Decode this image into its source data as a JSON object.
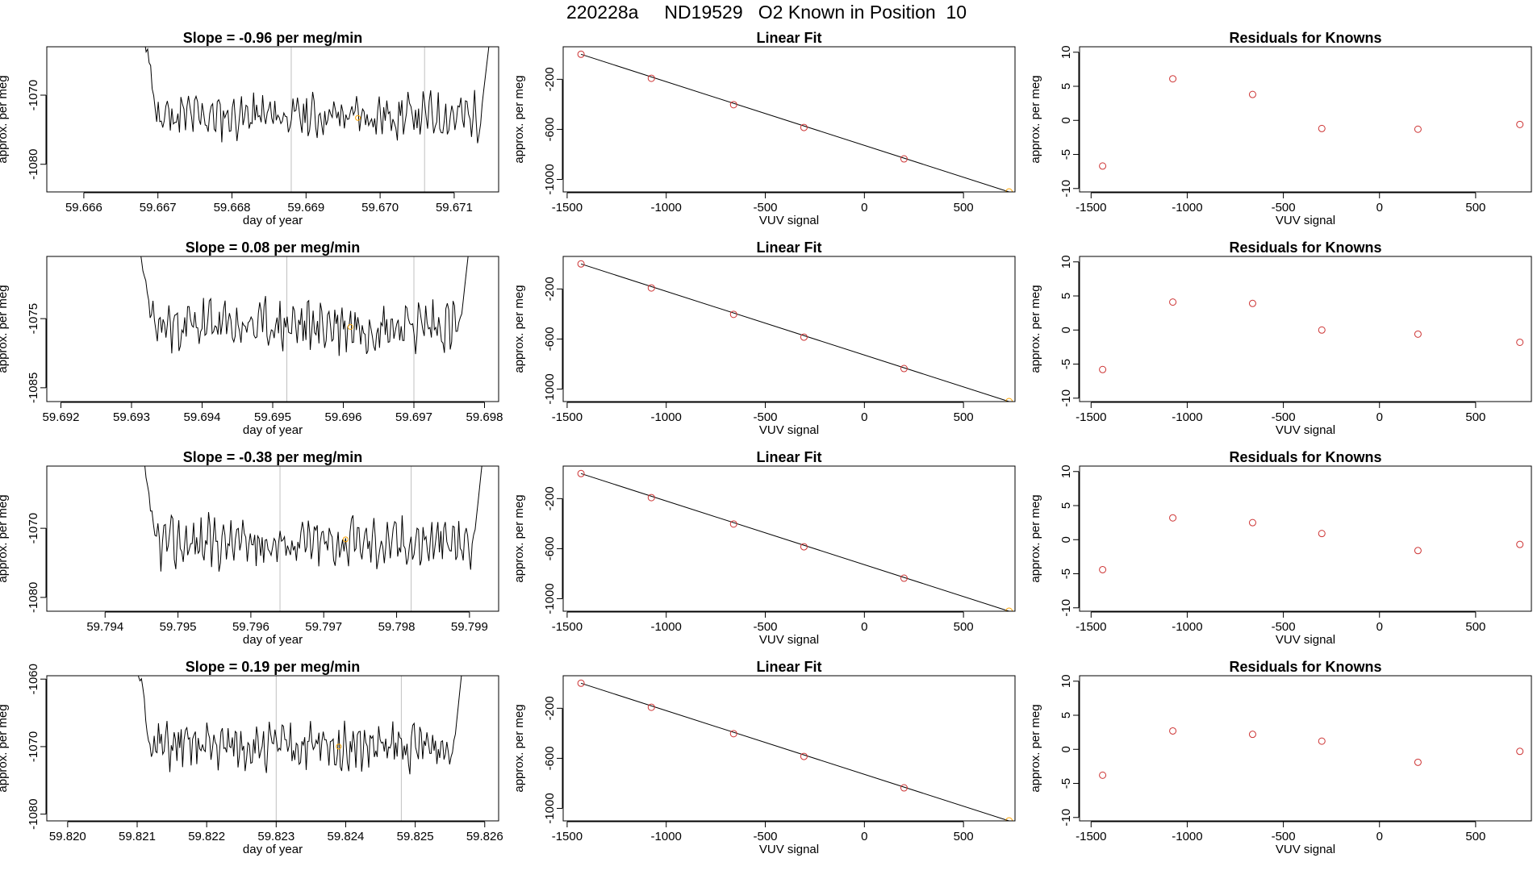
{
  "page_title": "220228a     ND19529   O2 Known in Position  10",
  "colors": {
    "trace": "#000000",
    "markers": "#cd3333",
    "highlight": "#ffa500",
    "guide": "#c0c0c0",
    "fit_line": "#000000"
  },
  "chart_data": [
    {
      "type": "line",
      "name": "time-series-row1",
      "title": "Slope =  -0.96  per meg/min",
      "xlabel": "day of year",
      "ylabel": "approx. per meg",
      "xlim": [
        59.6655,
        59.6716
      ],
      "ylim": [
        -1084,
        -1063
      ],
      "xticks": [
        59.666,
        59.667,
        59.668,
        59.669,
        59.67,
        59.671
      ],
      "xtick_labels": [
        "59.666",
        "59.667",
        "59.668",
        "59.669",
        "59.670",
        "59.671"
      ],
      "yticks": [
        -1070,
        -1080
      ],
      "ytick_labels": [
        "-1070",
        "-1080"
      ],
      "guides": [
        59.6688,
        59.6706
      ],
      "trace": {
        "x_start": 59.6668,
        "x_end": 59.6715,
        "baseline": -1073,
        "amplitude": 2.5,
        "seed": 11,
        "left_spike": -1060,
        "right_spike": -1060
      },
      "marker": {
        "x": 59.6697,
        "y": -1073.3
      }
    },
    {
      "type": "line",
      "name": "linear-fit-row1",
      "title": "Linear Fit",
      "xlabel": "VUV signal",
      "ylabel": "approx. per meg",
      "xlim": [
        -1520,
        760
      ],
      "ylim": [
        -1100,
        60
      ],
      "xticks": [
        -1500,
        -1000,
        -500,
        0,
        500
      ],
      "xtick_labels": [
        "-1500",
        "-1000",
        "-500",
        "0",
        "500"
      ],
      "yticks": [
        -200,
        -600,
        -1000
      ],
      "ytick_labels": [
        "-200",
        "-600",
        "-1000"
      ],
      "points": [
        [
          -1430,
          0
        ],
        [
          -1075,
          -192
        ],
        [
          -660,
          -403
        ],
        [
          -305,
          -585
        ],
        [
          200,
          -836
        ],
        [
          730,
          -1100
        ]
      ],
      "fit_line": [
        [
          -1430,
          0
        ],
        [
          730,
          -1100
        ]
      ]
    },
    {
      "type": "scatter",
      "name": "residuals-row1",
      "title": "Residuals for Knowns",
      "xlabel": "VUV signal",
      "ylabel": "approx. per meg",
      "xlim": [
        -1560,
        790
      ],
      "ylim": [
        -10.5,
        10.8
      ],
      "xticks": [
        -1500,
        -1000,
        -500,
        0,
        500
      ],
      "xtick_labels": [
        "-1500",
        "-1000",
        "-500",
        "0",
        "500"
      ],
      "yticks": [
        10,
        5,
        0,
        -5,
        -10
      ],
      "ytick_labels": [
        "10",
        "5",
        "0",
        "-5",
        "-10"
      ],
      "points": [
        [
          -1440,
          -6.7
        ],
        [
          -1075,
          6.1
        ],
        [
          -660,
          3.8
        ],
        [
          -300,
          -1.2
        ],
        [
          200,
          -1.3
        ],
        [
          730,
          -0.6
        ]
      ]
    },
    {
      "type": "line",
      "name": "time-series-row2",
      "title": "Slope =  0.08  per meg/min",
      "xlabel": "day of year",
      "ylabel": "approx. per meg",
      "xlim": [
        59.6918,
        59.6982
      ],
      "ylim": [
        -1087,
        -1066
      ],
      "xticks": [
        59.692,
        59.693,
        59.694,
        59.695,
        59.696,
        59.697,
        59.698
      ],
      "xtick_labels": [
        "59.692",
        "59.693",
        "59.694",
        "59.695",
        "59.696",
        "59.697",
        "59.698"
      ],
      "yticks": [
        -1075,
        -1085
      ],
      "ytick_labels": [
        "-1075",
        "-1085"
      ],
      "guides": [
        59.6952,
        59.697
      ],
      "trace": {
        "x_start": 59.6931,
        "x_end": 59.6978,
        "baseline": -1076,
        "amplitude": 3,
        "seed": 23,
        "left_spike": -1064,
        "right_spike": -1063
      },
      "marker": {
        "x": 59.6961,
        "y": -1076.2
      }
    },
    {
      "type": "line",
      "name": "linear-fit-row2",
      "title": "Linear Fit",
      "xlabel": "VUV signal",
      "ylabel": "approx. per meg",
      "xlim": [
        -1520,
        760
      ],
      "ylim": [
        -1100,
        60
      ],
      "xticks": [
        -1500,
        -1000,
        -500,
        0,
        500
      ],
      "xtick_labels": [
        "-1500",
        "-1000",
        "-500",
        "0",
        "500"
      ],
      "yticks": [
        -200,
        -600,
        -1000
      ],
      "ytick_labels": [
        "-200",
        "-600",
        "-1000"
      ],
      "points": [
        [
          -1430,
          0
        ],
        [
          -1075,
          -192
        ],
        [
          -660,
          -403
        ],
        [
          -305,
          -585
        ],
        [
          200,
          -836
        ],
        [
          730,
          -1100
        ]
      ],
      "fit_line": [
        [
          -1430,
          0
        ],
        [
          730,
          -1100
        ]
      ]
    },
    {
      "type": "scatter",
      "name": "residuals-row2",
      "title": "Residuals for Knowns",
      "xlabel": "VUV signal",
      "ylabel": "approx. per meg",
      "xlim": [
        -1560,
        790
      ],
      "ylim": [
        -10.5,
        10.8
      ],
      "xticks": [
        -1500,
        -1000,
        -500,
        0,
        500
      ],
      "xtick_labels": [
        "-1500",
        "-1000",
        "-500",
        "0",
        "500"
      ],
      "yticks": [
        10,
        5,
        0,
        -5,
        -10
      ],
      "ytick_labels": [
        "10",
        "5",
        "0",
        "-5",
        "-10"
      ],
      "points": [
        [
          -1440,
          -5.8
        ],
        [
          -1075,
          4.1
        ],
        [
          -660,
          3.9
        ],
        [
          -300,
          0.0
        ],
        [
          200,
          -0.6
        ],
        [
          730,
          -1.8
        ]
      ]
    },
    {
      "type": "line",
      "name": "time-series-row3",
      "title": "Slope =  -0.38  per meg/min",
      "xlabel": "day of year",
      "ylabel": "approx. per meg",
      "xlim": [
        59.7932,
        59.7994
      ],
      "ylim": [
        -1082,
        -1061
      ],
      "xticks": [
        59.794,
        59.795,
        59.796,
        59.797,
        59.798,
        59.799
      ],
      "xtick_labels": [
        "59.794",
        "59.795",
        "59.796",
        "59.797",
        "59.798",
        "59.799"
      ],
      "yticks": [
        -1070,
        -1080
      ],
      "ytick_labels": [
        "-1070",
        "-1080"
      ],
      "guides": [
        59.7964,
        59.7982
      ],
      "trace": {
        "x_start": 59.7945,
        "x_end": 59.7992,
        "baseline": -1072,
        "amplitude": 2.8,
        "seed": 37,
        "left_spike": -1059,
        "right_spike": -1058
      },
      "marker": {
        "x": 59.7973,
        "y": -1071.6
      }
    },
    {
      "type": "line",
      "name": "linear-fit-row3",
      "title": "Linear Fit",
      "xlabel": "VUV signal",
      "ylabel": "approx. per meg",
      "xlim": [
        -1520,
        760
      ],
      "ylim": [
        -1100,
        60
      ],
      "xticks": [
        -1500,
        -1000,
        -500,
        0,
        500
      ],
      "xtick_labels": [
        "-1500",
        "-1000",
        "-500",
        "0",
        "500"
      ],
      "yticks": [
        -200,
        -600,
        -1000
      ],
      "ytick_labels": [
        "-200",
        "-600",
        "-1000"
      ],
      "points": [
        [
          -1430,
          0
        ],
        [
          -1075,
          -192
        ],
        [
          -660,
          -403
        ],
        [
          -305,
          -585
        ],
        [
          200,
          -836
        ],
        [
          730,
          -1100
        ]
      ],
      "fit_line": [
        [
          -1430,
          0
        ],
        [
          730,
          -1100
        ]
      ]
    },
    {
      "type": "scatter",
      "name": "residuals-row3",
      "title": "Residuals for Knowns",
      "xlabel": "VUV signal",
      "ylabel": "approx. per meg",
      "xlim": [
        -1560,
        790
      ],
      "ylim": [
        -10.5,
        10.8
      ],
      "xticks": [
        -1500,
        -1000,
        -500,
        0,
        500
      ],
      "xtick_labels": [
        "-1500",
        "-1000",
        "-500",
        "0",
        "500"
      ],
      "yticks": [
        10,
        5,
        0,
        -5,
        -10
      ],
      "ytick_labels": [
        "10",
        "5",
        "0",
        "-5",
        "-10"
      ],
      "points": [
        [
          -1440,
          -4.4
        ],
        [
          -1075,
          3.2
        ],
        [
          -660,
          2.5
        ],
        [
          -300,
          0.9
        ],
        [
          200,
          -1.6
        ],
        [
          730,
          -0.7
        ]
      ]
    },
    {
      "type": "line",
      "name": "time-series-row4",
      "title": "Slope =  0.19  per meg/min",
      "xlabel": "day of year",
      "ylabel": "approx. per meg",
      "xlim": [
        59.8197,
        59.8262
      ],
      "ylim": [
        -1081,
        -1059.5
      ],
      "xticks": [
        59.82,
        59.821,
        59.822,
        59.823,
        59.824,
        59.825,
        59.826
      ],
      "xtick_labels": [
        "59.820",
        "59.821",
        "59.822",
        "59.823",
        "59.824",
        "59.825",
        "59.826"
      ],
      "yticks": [
        -1060,
        -1070,
        -1080
      ],
      "ytick_labels": [
        "-1060",
        "-1070",
        "-1080"
      ],
      "guides": [
        59.823,
        59.8248
      ],
      "trace": {
        "x_start": 59.821,
        "x_end": 59.8257,
        "baseline": -1070,
        "amplitude": 2.6,
        "seed": 51,
        "left_spike": -1057,
        "right_spike": -1056
      },
      "marker": {
        "x": 59.8239,
        "y": -1070
      }
    },
    {
      "type": "line",
      "name": "linear-fit-row4",
      "title": "Linear Fit",
      "xlabel": "VUV signal",
      "ylabel": "approx. per meg",
      "xlim": [
        -1520,
        760
      ],
      "ylim": [
        -1100,
        60
      ],
      "xticks": [
        -1500,
        -1000,
        -500,
        0,
        500
      ],
      "xtick_labels": [
        "-1500",
        "-1000",
        "-500",
        "0",
        "500"
      ],
      "yticks": [
        -200,
        -600,
        -1000
      ],
      "ytick_labels": [
        "-200",
        "-600",
        "-1000"
      ],
      "points": [
        [
          -1430,
          0
        ],
        [
          -1075,
          -192
        ],
        [
          -660,
          -403
        ],
        [
          -305,
          -585
        ],
        [
          200,
          -836
        ],
        [
          730,
          -1100
        ]
      ],
      "fit_line": [
        [
          -1430,
          0
        ],
        [
          730,
          -1100
        ]
      ]
    },
    {
      "type": "scatter",
      "name": "residuals-row4",
      "title": "Residuals for Knowns",
      "xlabel": "VUV signal",
      "ylabel": "approx. per meg",
      "xlim": [
        -1560,
        790
      ],
      "ylim": [
        -10.5,
        10.8
      ],
      "xticks": [
        -1500,
        -1000,
        -500,
        0,
        500
      ],
      "xtick_labels": [
        "-1500",
        "-1000",
        "-500",
        "0",
        "500"
      ],
      "yticks": [
        10,
        5,
        0,
        -5,
        -10
      ],
      "ytick_labels": [
        "10",
        "5",
        "0",
        "-5",
        "-10"
      ],
      "points": [
        [
          -1440,
          -3.8
        ],
        [
          -1075,
          2.7
        ],
        [
          -660,
          2.2
        ],
        [
          -300,
          1.2
        ],
        [
          200,
          -1.9
        ],
        [
          730,
          -0.3
        ]
      ]
    }
  ]
}
